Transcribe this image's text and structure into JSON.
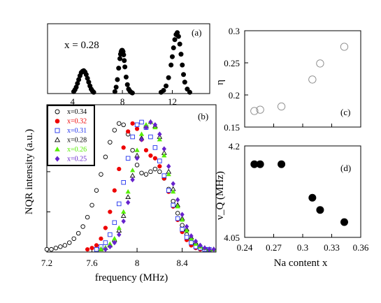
{
  "chart_data": [
    {
      "panel": "(a)",
      "type": "scatter",
      "annotation": "x = 0.28",
      "xticks": [
        "4",
        "8",
        "12"
      ],
      "xlim": [
        2,
        15
      ],
      "ylim": [
        0,
        1.1
      ],
      "series": [
        {
          "name": "",
          "color": "#000000",
          "marker": "filled-circle",
          "x": [
            4.1,
            4.2,
            4.3,
            4.4,
            4.5,
            4.6,
            4.7,
            4.8,
            4.9,
            5.0,
            5.1,
            5.2,
            5.3,
            5.4,
            5.5,
            5.6,
            5.7,
            7.4,
            7.5,
            7.6,
            7.7,
            7.8,
            7.85,
            7.9,
            7.95,
            8.0,
            8.05,
            8.1,
            8.15,
            8.2,
            8.3,
            8.4,
            8.5,
            8.6,
            8.7,
            8.8,
            11.1,
            11.3,
            11.5,
            11.7,
            11.9,
            12.0,
            12.1,
            12.2,
            12.3,
            12.4,
            12.5,
            12.6,
            12.7,
            12.8,
            12.9,
            13.0,
            13.2,
            13.4
          ],
          "y": [
            0.03,
            0.06,
            0.1,
            0.16,
            0.22,
            0.28,
            0.33,
            0.35,
            0.36,
            0.34,
            0.3,
            0.24,
            0.18,
            0.12,
            0.07,
            0.04,
            0.02,
            0.03,
            0.1,
            0.22,
            0.4,
            0.55,
            0.62,
            0.66,
            0.68,
            0.68,
            0.66,
            0.61,
            0.52,
            0.42,
            0.26,
            0.14,
            0.07,
            0.04,
            0.02,
            0.01,
            0.02,
            0.05,
            0.12,
            0.25,
            0.45,
            0.58,
            0.72,
            0.85,
            0.93,
            0.96,
            0.9,
            0.78,
            0.62,
            0.45,
            0.3,
            0.18,
            0.07,
            0.02
          ]
        }
      ]
    },
    {
      "panel": "(b)",
      "type": "scatter",
      "xlabel": "frequency (MHz)",
      "ylabel": "NQR intensity (a.u.)",
      "xticks": [
        7.2,
        7.6,
        8,
        8.4
      ],
      "xlim": [
        7.2,
        8.7
      ],
      "ylim": [
        0,
        1.1
      ],
      "series": [
        {
          "name": "x=0.34",
          "color": "#000000",
          "marker": "open-circle",
          "x": [
            7.2,
            7.24,
            7.28,
            7.32,
            7.36,
            7.4,
            7.44,
            7.48,
            7.52,
            7.56,
            7.6,
            7.64,
            7.68,
            7.72,
            7.76,
            7.8,
            7.84,
            7.88,
            7.92,
            7.96,
            8.0,
            8.04,
            8.08,
            8.12,
            8.16,
            8.2,
            8.24,
            8.28,
            8.32,
            8.36,
            8.4,
            8.44,
            8.48,
            8.52,
            8.56,
            8.6,
            8.64
          ],
          "y": [
            0.02,
            0.02,
            0.03,
            0.04,
            0.05,
            0.07,
            0.1,
            0.14,
            0.19,
            0.26,
            0.35,
            0.46,
            0.58,
            0.71,
            0.82,
            0.91,
            0.96,
            0.95,
            0.88,
            0.76,
            0.65,
            0.59,
            0.58,
            0.6,
            0.62,
            0.6,
            0.55,
            0.47,
            0.38,
            0.29,
            0.2,
            0.13,
            0.08,
            0.05,
            0.03,
            0.02,
            0.02
          ]
        },
        {
          "name": "x=0.32",
          "color": "#ee0000",
          "marker": "filled-circle",
          "x": [
            7.56,
            7.6,
            7.64,
            7.68,
            7.72,
            7.76,
            7.8,
            7.84,
            7.88,
            7.92,
            7.96,
            8.0,
            8.04,
            8.08,
            8.12,
            8.16,
            8.2,
            8.24,
            8.28,
            8.32,
            8.36,
            8.4,
            8.44,
            8.48,
            8.52,
            8.56,
            8.6
          ],
          "y": [
            0.02,
            0.03,
            0.05,
            0.1,
            0.18,
            0.3,
            0.46,
            0.62,
            0.78,
            0.9,
            0.96,
            0.92,
            0.84,
            0.76,
            0.72,
            0.7,
            0.64,
            0.55,
            0.45,
            0.34,
            0.24,
            0.15,
            0.09,
            0.05,
            0.03,
            0.02,
            0.02
          ]
        },
        {
          "name": "x=0.31",
          "color": "#2233ee",
          "marker": "open-square",
          "x": [
            7.64,
            7.68,
            7.72,
            7.76,
            7.8,
            7.84,
            7.88,
            7.92,
            7.96,
            8.0,
            8.04,
            8.08,
            8.12,
            8.16,
            8.2,
            8.24,
            8.28,
            8.32,
            8.36,
            8.4,
            8.44,
            8.48,
            8.52,
            8.56,
            8.6,
            8.64
          ],
          "y": [
            0.02,
            0.04,
            0.07,
            0.13,
            0.22,
            0.36,
            0.52,
            0.7,
            0.86,
            0.95,
            0.97,
            0.93,
            0.86,
            0.78,
            0.68,
            0.57,
            0.46,
            0.35,
            0.25,
            0.17,
            0.11,
            0.07,
            0.04,
            0.03,
            0.02,
            0.02
          ]
        },
        {
          "name": "x=0.28",
          "color": "#000000",
          "marker": "open-triangle",
          "x": [
            7.68,
            7.72,
            7.76,
            7.8,
            7.84,
            7.88,
            7.92,
            7.96,
            8.0,
            8.04,
            8.08,
            8.12,
            8.16,
            8.2,
            8.24,
            8.28,
            8.32,
            8.36,
            8.4,
            8.44,
            8.48,
            8.52,
            8.56,
            8.6,
            8.64,
            8.68
          ],
          "y": [
            0.02,
            0.03,
            0.05,
            0.09,
            0.16,
            0.27,
            0.41,
            0.57,
            0.72,
            0.85,
            0.94,
            0.97,
            0.94,
            0.86,
            0.74,
            0.6,
            0.47,
            0.35,
            0.25,
            0.17,
            0.11,
            0.07,
            0.04,
            0.03,
            0.02,
            0.02
          ]
        },
        {
          "name": "x=0.26",
          "color": "#55ee00",
          "marker": "filled-triangle",
          "x": [
            7.68,
            7.72,
            7.76,
            7.8,
            7.84,
            7.88,
            7.92,
            7.96,
            8.0,
            8.04,
            8.08,
            8.12,
            8.16,
            8.2,
            8.24,
            8.28,
            8.32,
            8.36,
            8.4,
            8.44,
            8.48,
            8.52,
            8.56,
            8.6,
            8.64,
            8.68
          ],
          "y": [
            0.02,
            0.03,
            0.06,
            0.1,
            0.18,
            0.3,
            0.45,
            0.61,
            0.76,
            0.88,
            0.95,
            0.97,
            0.93,
            0.84,
            0.72,
            0.58,
            0.45,
            0.34,
            0.24,
            0.16,
            0.1,
            0.06,
            0.04,
            0.03,
            0.02,
            0.02
          ]
        },
        {
          "name": "x=0.25",
          "color": "#6622cc",
          "marker": "filled-diamond",
          "x": [
            7.72,
            7.76,
            7.8,
            7.84,
            7.88,
            7.92,
            7.96,
            8.0,
            8.04,
            8.08,
            8.12,
            8.16,
            8.2,
            8.24,
            8.28,
            8.32,
            8.36,
            8.4,
            8.44,
            8.48,
            8.52,
            8.56,
            8.6,
            8.64,
            8.68
          ],
          "y": [
            0.02,
            0.04,
            0.07,
            0.13,
            0.23,
            0.37,
            0.54,
            0.7,
            0.84,
            0.93,
            0.97,
            0.95,
            0.88,
            0.77,
            0.64,
            0.51,
            0.39,
            0.28,
            0.19,
            0.12,
            0.08,
            0.05,
            0.03,
            0.02,
            0.02
          ]
        }
      ]
    },
    {
      "panel": "(c)",
      "type": "scatter",
      "ylabel": "η",
      "yticks": [
        "0.15",
        "0.2",
        "0.25",
        "0.3"
      ],
      "xlim": [
        0.24,
        0.36
      ],
      "ylim": [
        0.15,
        0.3
      ],
      "series": [
        {
          "name": "",
          "color": "#888888",
          "marker": "open-circle",
          "x": [
            0.25,
            0.256,
            0.278,
            0.31,
            0.318,
            0.343
          ],
          "y": [
            0.175,
            0.177,
            0.182,
            0.224,
            0.249,
            0.275
          ]
        }
      ]
    },
    {
      "panel": "(d)",
      "type": "scatter",
      "xlabel": "Na content x",
      "ylabel": "ν_Q (MHz)",
      "xticks": [
        "0.24",
        "0.27",
        "0.3",
        "0.33",
        "0.36"
      ],
      "yticks": [
        "4.05",
        "4.2"
      ],
      "xlim": [
        0.24,
        0.36
      ],
      "ylim": [
        4.05,
        4.2
      ],
      "series": [
        {
          "name": "",
          "color": "#000000",
          "marker": "filled-circle",
          "x": [
            0.25,
            0.256,
            0.278,
            0.31,
            0.318,
            0.343
          ],
          "y": [
            4.17,
            4.17,
            4.17,
            4.115,
            4.095,
            4.075
          ]
        }
      ]
    }
  ]
}
